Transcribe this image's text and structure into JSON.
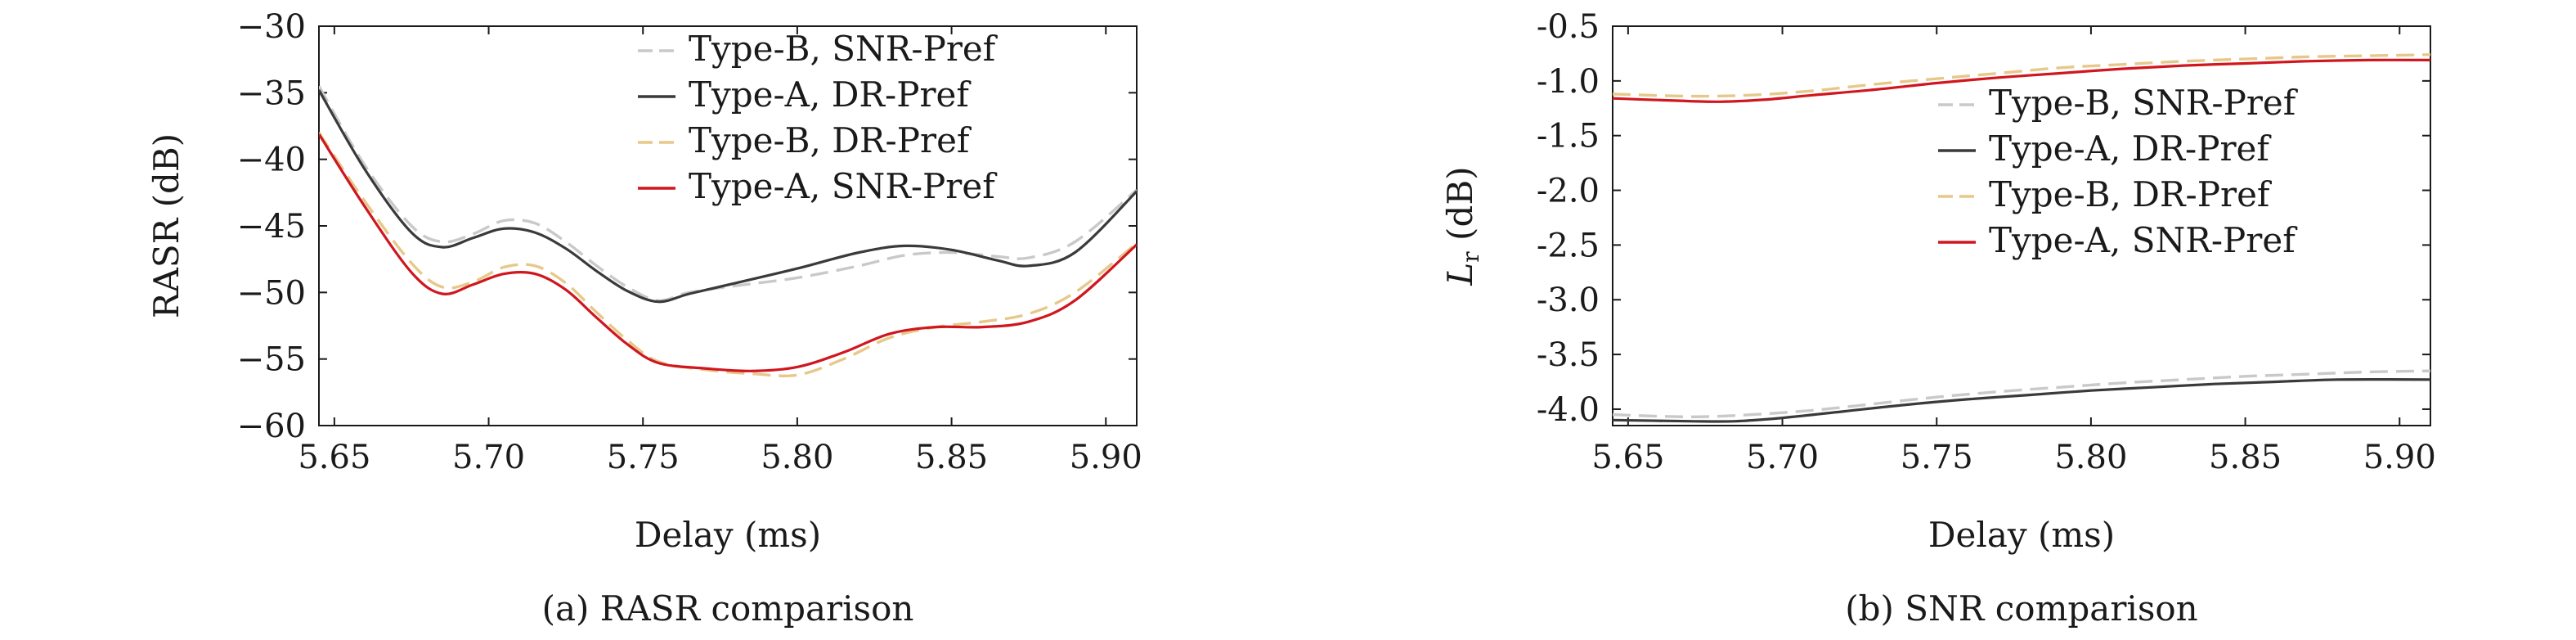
{
  "colors": {
    "type_a_dr": "#3a3a3a",
    "type_a_snr": "#d0161e",
    "type_b_snr": "#c9c9c9",
    "type_b_dr": "#e6c98a"
  },
  "captions": [
    "(a) RASR comparison",
    "(b) SNR comparison"
  ],
  "chart_data": [
    {
      "type": "line",
      "title": "",
      "xlabel": "Delay (ms)",
      "ylabel": "RASR (dB)",
      "xlim": [
        5.645,
        5.91
      ],
      "ylim": [
        -60,
        -30
      ],
      "xticks": [
        "5.65",
        "5.70",
        "5.75",
        "5.80",
        "5.85",
        "5.90"
      ],
      "yticks": [
        "−30",
        "−35",
        "−40",
        "−45",
        "−50",
        "−55",
        "−60"
      ],
      "legend_position": "top-right",
      "grid": false,
      "series": [
        {
          "name": "Type-B, SNR-Pref",
          "style": "dashed",
          "color_key": "type_b_snr",
          "x": [
            5.645,
            5.66,
            5.675,
            5.685,
            5.695,
            5.705,
            5.715,
            5.725,
            5.735,
            5.745,
            5.755,
            5.765,
            5.78,
            5.8,
            5.82,
            5.835,
            5.85,
            5.865,
            5.875,
            5.89,
            5.91
          ],
          "y": [
            -34.5,
            -40.5,
            -45.0,
            -46.2,
            -45.6,
            -44.6,
            -44.8,
            -46.2,
            -48.0,
            -49.6,
            -50.6,
            -50.0,
            -49.5,
            -48.9,
            -48.0,
            -47.2,
            -47.0,
            -47.3,
            -47.4,
            -46.2,
            -42.3
          ]
        },
        {
          "name": "Type-A, DR-Pref",
          "style": "solid",
          "color_key": "type_a_dr",
          "x": [
            5.645,
            5.66,
            5.675,
            5.685,
            5.695,
            5.705,
            5.715,
            5.725,
            5.735,
            5.745,
            5.755,
            5.765,
            5.78,
            5.8,
            5.82,
            5.835,
            5.85,
            5.865,
            5.875,
            5.89,
            5.91
          ],
          "y": [
            -34.8,
            -40.8,
            -45.5,
            -46.6,
            -45.9,
            -45.2,
            -45.5,
            -46.7,
            -48.4,
            -49.9,
            -50.7,
            -50.1,
            -49.3,
            -48.2,
            -47.0,
            -46.5,
            -46.8,
            -47.6,
            -48.0,
            -47.0,
            -42.4
          ]
        },
        {
          "name": "Type-B, DR-Pref",
          "style": "dashed",
          "color_key": "type_b_dr",
          "x": [
            5.645,
            5.66,
            5.675,
            5.685,
            5.695,
            5.705,
            5.715,
            5.725,
            5.735,
            5.745,
            5.755,
            5.77,
            5.785,
            5.8,
            5.815,
            5.83,
            5.845,
            5.86,
            5.875,
            5.89,
            5.91
          ],
          "y": [
            -38.0,
            -43.2,
            -47.8,
            -49.6,
            -49.2,
            -48.1,
            -48.0,
            -49.3,
            -51.5,
            -53.6,
            -55.2,
            -55.8,
            -56.1,
            -56.2,
            -55.0,
            -53.4,
            -52.6,
            -52.2,
            -51.6,
            -50.0,
            -46.3
          ]
        },
        {
          "name": "Type-A, SNR-Pref",
          "style": "solid",
          "color_key": "type_a_snr",
          "x": [
            5.645,
            5.66,
            5.675,
            5.685,
            5.695,
            5.705,
            5.715,
            5.725,
            5.735,
            5.745,
            5.755,
            5.77,
            5.785,
            5.8,
            5.815,
            5.83,
            5.845,
            5.86,
            5.875,
            5.89,
            5.91
          ],
          "y": [
            -38.1,
            -43.6,
            -48.5,
            -50.1,
            -49.4,
            -48.6,
            -48.6,
            -49.8,
            -51.9,
            -53.9,
            -55.3,
            -55.7,
            -55.9,
            -55.6,
            -54.5,
            -53.1,
            -52.6,
            -52.6,
            -52.2,
            -50.6,
            -46.4
          ]
        }
      ]
    },
    {
      "type": "line",
      "title": "",
      "xlabel": "Delay (ms)",
      "ylabel": "Lr (dB)",
      "xlim": [
        5.645,
        5.91
      ],
      "ylim": [
        -4.15,
        -0.5
      ],
      "xticks": [
        "5.65",
        "5.70",
        "5.75",
        "5.80",
        "5.85",
        "5.90"
      ],
      "yticks": [
        "-0.5",
        "-1.0",
        "-1.5",
        "-2.0",
        "-2.5",
        "-3.0",
        "-3.5",
        "-4.0"
      ],
      "legend_position": "center-right",
      "grid": false,
      "series": [
        {
          "name": "Type-B, SNR-Pref",
          "style": "dashed",
          "color_key": "type_b_snr",
          "x": [
            5.645,
            5.67,
            5.69,
            5.71,
            5.73,
            5.75,
            5.77,
            5.79,
            5.81,
            5.83,
            5.85,
            5.87,
            5.89,
            5.91
          ],
          "y": [
            -4.05,
            -4.07,
            -4.05,
            -4.01,
            -3.95,
            -3.89,
            -3.84,
            -3.8,
            -3.76,
            -3.73,
            -3.7,
            -3.68,
            -3.66,
            -3.65
          ]
        },
        {
          "name": "Type-A, DR-Pref",
          "style": "solid",
          "color_key": "type_a_dr",
          "x": [
            5.645,
            5.67,
            5.685,
            5.7,
            5.72,
            5.74,
            5.76,
            5.78,
            5.8,
            5.82,
            5.84,
            5.86,
            5.88,
            5.91
          ],
          "y": [
            -4.1,
            -4.11,
            -4.11,
            -4.08,
            -4.02,
            -3.96,
            -3.91,
            -3.87,
            -3.83,
            -3.8,
            -3.77,
            -3.75,
            -3.73,
            -3.73
          ]
        },
        {
          "name": "Type-B, DR-Pref",
          "style": "dashed",
          "color_key": "type_b_dr",
          "x": [
            5.645,
            5.67,
            5.69,
            5.71,
            5.73,
            5.75,
            5.77,
            5.79,
            5.81,
            5.83,
            5.85,
            5.87,
            5.89,
            5.91
          ],
          "y": [
            -1.12,
            -1.14,
            -1.13,
            -1.09,
            -1.03,
            -0.98,
            -0.93,
            -0.88,
            -0.85,
            -0.82,
            -0.8,
            -0.78,
            -0.77,
            -0.76
          ]
        },
        {
          "name": "Type-A, SNR-Pref",
          "style": "solid",
          "color_key": "type_a_snr",
          "x": [
            5.645,
            5.665,
            5.68,
            5.695,
            5.71,
            5.73,
            5.75,
            5.77,
            5.79,
            5.81,
            5.83,
            5.85,
            5.87,
            5.89,
            5.91
          ],
          "y": [
            -1.16,
            -1.18,
            -1.19,
            -1.17,
            -1.13,
            -1.08,
            -1.02,
            -0.97,
            -0.93,
            -0.89,
            -0.86,
            -0.84,
            -0.82,
            -0.81,
            -0.81
          ]
        }
      ]
    }
  ]
}
